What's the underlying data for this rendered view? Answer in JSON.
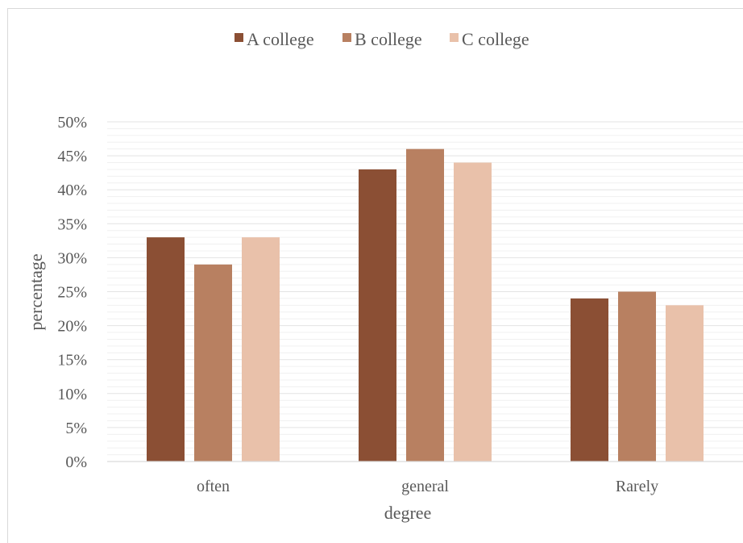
{
  "chart_data": {
    "type": "bar",
    "categories": [
      "often",
      "general",
      "Rarely"
    ],
    "series": [
      {
        "name": "A college",
        "values": [
          33,
          43,
          24
        ]
      },
      {
        "name": "B college",
        "values": [
          29,
          46,
          25
        ]
      },
      {
        "name": "C college",
        "values": [
          33,
          44,
          23
        ]
      }
    ],
    "xlabel": "degree",
    "ylabel": "percentage",
    "ylim": [
      0,
      50
    ],
    "y_ticks": [
      "0%",
      "5%",
      "10%",
      "15%",
      "20%",
      "25%",
      "30%",
      "35%",
      "40%",
      "45%",
      "50%"
    ],
    "gridlines": true,
    "legend_position": "top",
    "colors": [
      "#8b4f34",
      "#b88061",
      "#e9c1aa"
    ]
  }
}
